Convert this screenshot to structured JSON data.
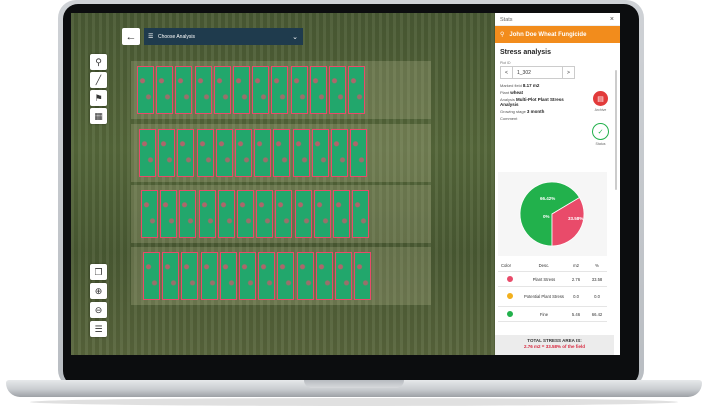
{
  "map": {
    "back_icon": "arrow-left-icon",
    "analysis_select": "Choose Analysis",
    "tools": [
      "location-pin-icon",
      "ruler-icon",
      "flag-icon",
      "grid-select-icon"
    ],
    "zoom_tools": [
      "layers-copy-icon",
      "zoom-in-icon",
      "zoom-out-icon",
      "layers-icon"
    ],
    "plot_label": "1_1_302"
  },
  "stats": {
    "header": "Stats",
    "close": "×",
    "field_name": "John Doe Wheat Fungicide",
    "title": "Stress analysis",
    "plot_id_label": "Plot ID",
    "plot_id": "1_302",
    "prev": "<",
    "next": ">",
    "marked_area_label": "Marked field",
    "marked_area": "8.17 m2",
    "plant_label": "Plant",
    "plant": "wheat",
    "analysis_label": "Analysis",
    "analysis": "Multi-Plot Plant Stress Analysis",
    "growing_label": "Growing stage",
    "growing": "3 month",
    "comment_label": "Comment",
    "archive_label": "Archive",
    "status_label": "Status",
    "accent": "#f28c1c"
  },
  "chart_data": {
    "type": "pie",
    "categories": [
      "Plant Stress",
      "Potential Plant Stress",
      "Fine"
    ],
    "values": [
      33.58,
      0,
      66.42
    ],
    "data_labels": [
      "33.58%",
      "0%",
      "66.42%"
    ],
    "colors": [
      "#e94b6a",
      "#f2b01e",
      "#22b14c"
    ]
  },
  "table": {
    "headers": [
      "Color",
      "Desc.",
      "m2",
      "%"
    ],
    "rows": [
      {
        "desc": "Plant Stress",
        "m2": "2.76",
        "pct": "33.58",
        "color": "#e94b6a"
      },
      {
        "desc": "Potential Plant Stress",
        "m2": "0.0",
        "pct": "0.0",
        "color": "#f2b01e"
      },
      {
        "desc": "Fine",
        "m2": "5.46",
        "pct": "66.42",
        "color": "#22b14c"
      }
    ]
  },
  "total": {
    "line1": "TOTAL STRESS AREA IS:",
    "line2": "2.76 m2 = 33.58% of the field"
  }
}
